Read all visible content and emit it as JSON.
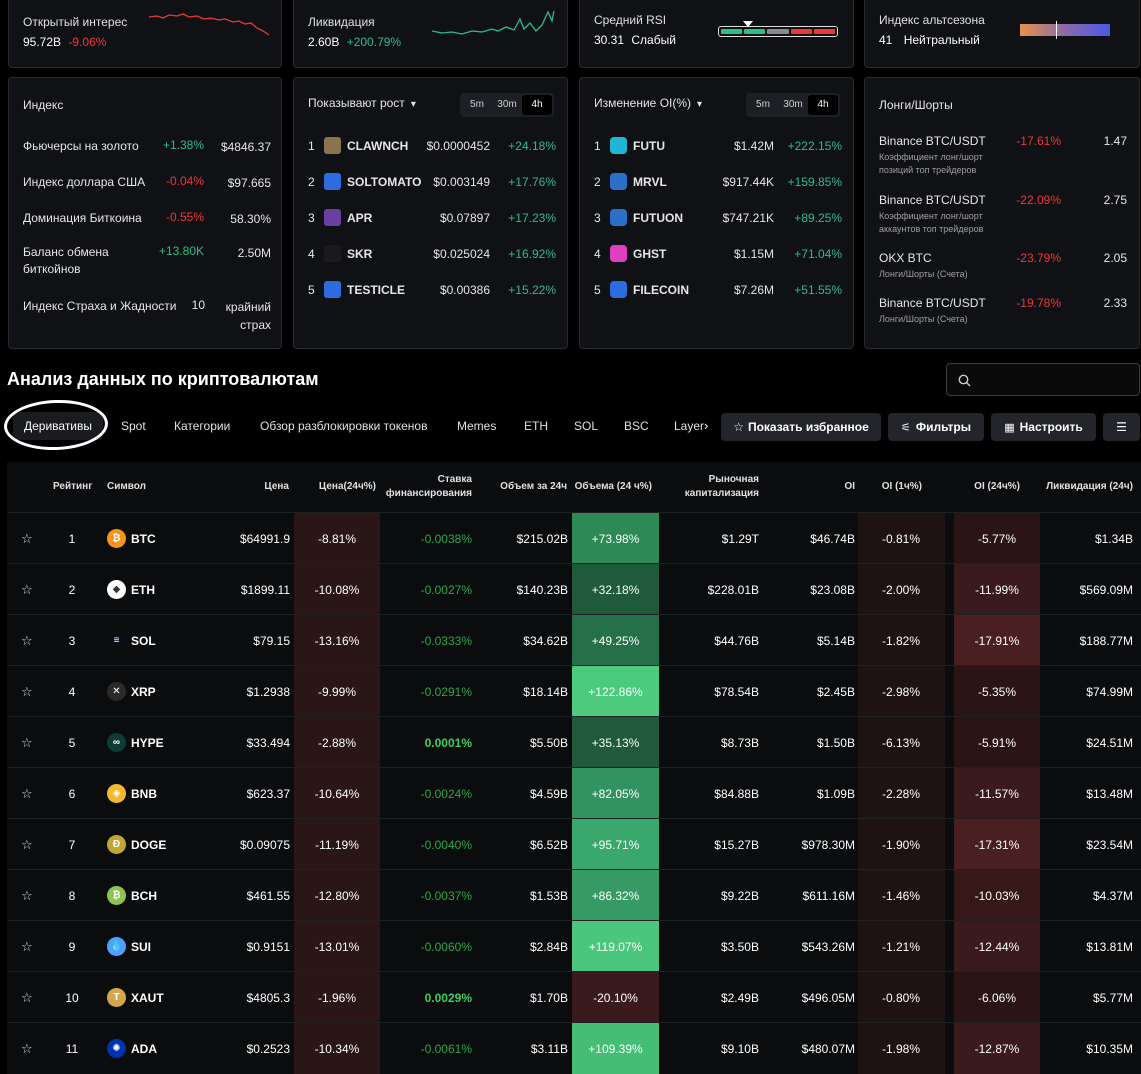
{
  "top": {
    "oi": {
      "title": "Открытый интерес",
      "value": "95.72B",
      "change": "-9.06%"
    },
    "liq": {
      "title": "Ликвидация",
      "value": "2.60B",
      "change": "+200.79%"
    },
    "rsi": {
      "title": "Средний RSI",
      "value": "30.31",
      "label": "Слабый"
    },
    "alt": {
      "title": "Индекс альтсезона",
      "value": "41",
      "label": "Нейтральный"
    }
  },
  "index_panel": {
    "title": "Индекс",
    "rows": [
      {
        "name": "Фьючерсы на золото",
        "change": "+1.38%",
        "value": "$4846.37",
        "dir": "pos"
      },
      {
        "name": "Индекс доллара США",
        "change": "-0.04%",
        "value": "$97.665",
        "dir": "neg"
      },
      {
        "name": "Доминация Биткоина",
        "change": "-0.55%",
        "value": "58.30%",
        "dir": "neg"
      },
      {
        "name": "Баланс обмена биткойнов",
        "change": "+13.80K",
        "value": "2.50M",
        "dir": "pos"
      },
      {
        "name": "Индекс Страха и Жадности",
        "change": "10",
        "value": "крайний страх",
        "dir": "none"
      }
    ]
  },
  "growth_panel": {
    "title": "Показывают рост",
    "tabs": [
      "5m",
      "30m",
      "4h"
    ],
    "rows": [
      {
        "rank": "1",
        "symbol": "CLAWNCH",
        "price": "$0.0000452",
        "change": "+24.18%",
        "color": "#8a7350"
      },
      {
        "rank": "2",
        "symbol": "SOLTOMATO",
        "price": "$0.003149",
        "change": "+17.76%",
        "color": "#2d6cdf"
      },
      {
        "rank": "3",
        "symbol": "APR",
        "price": "$0.07897",
        "change": "+17.23%",
        "color": "#6b3fa0"
      },
      {
        "rank": "4",
        "symbol": "SKR",
        "price": "$0.025024",
        "change": "+16.92%",
        "color": "#1a1a1a"
      },
      {
        "rank": "5",
        "symbol": "TESTICLE",
        "price": "$0.00386",
        "change": "+15.22%",
        "color": "#2d6cdf"
      }
    ]
  },
  "oi_panel": {
    "title": "Изменение OI(%)",
    "tabs": [
      "5m",
      "30m",
      "4h"
    ],
    "rows": [
      {
        "rank": "1",
        "symbol": "FUTU",
        "value": "$1.42M",
        "change": "+222.15%",
        "color": "#1fb6d6"
      },
      {
        "rank": "2",
        "symbol": "MRVL",
        "value": "$917.44K",
        "change": "+159.85%",
        "color": "#2b6fc9"
      },
      {
        "rank": "3",
        "symbol": "FUTUON",
        "value": "$747.21K",
        "change": "+89.25%",
        "color": "#2b6fc9"
      },
      {
        "rank": "4",
        "symbol": "GHST",
        "value": "$1.15M",
        "change": "+71.04%",
        "color": "#e040c0"
      },
      {
        "rank": "5",
        "symbol": "FILECOIN",
        "value": "$7.26M",
        "change": "+51.55%",
        "color": "#2d6cdf"
      }
    ]
  },
  "ls_panel": {
    "title": "Лонги/Шорты",
    "rows": [
      {
        "name": "Binance BTC/USDT",
        "sub": "Коэффициент лонг/шорт позиций топ трейдеров",
        "change": "-17.61%",
        "value": "1.47"
      },
      {
        "name": "Binance BTC/USDT",
        "sub": "Коэффициент лонг/шорт аккаунтов топ трейдеров",
        "change": "-22.09%",
        "value": "2.75"
      },
      {
        "name": "OKX BTC",
        "sub": "Лонги/Шорты (Счета)",
        "change": "-23.79%",
        "value": "2.05"
      },
      {
        "name": "Binance BTC/USDT",
        "sub": "Лонги/Шорты (Счета)",
        "change": "-19.78%",
        "value": "2.33"
      }
    ]
  },
  "section_title": "Анализ данных по криптовалютам",
  "search": {
    "placeholder": ""
  },
  "tabs": {
    "active": "Деривативы",
    "items": [
      "Spot",
      "Категории",
      "Обзор разблокировки токенов",
      "Memes",
      "ETH",
      "SOL",
      "BSC",
      "Layer"
    ]
  },
  "buttons": {
    "favorites": "Показать избранное",
    "filters": "Фильтры",
    "customize": "Настроить"
  },
  "headers": {
    "rank": "Рейтинг",
    "symbol": "Символ",
    "price": "Цена",
    "price_change": "Цена(24ч%)",
    "funding": "Ставка финансирования",
    "vol24": "Объем за 24ч",
    "vol_change": "Объема (24 ч%)",
    "mcap": "Рыночная капитализация",
    "oi": "OI",
    "oi1h": "OI (1ч%)",
    "oi24": "OI (24ч%)",
    "liq": "Ликвидация (24ч)"
  },
  "rows": [
    {
      "rank": "1",
      "symbol": "BTC",
      "price": "$64991.9",
      "pc": "-8.81%",
      "fund": "-0.0038%",
      "fund_pos": false,
      "vol": "$215.02B",
      "vc": "+73.98%",
      "vc_bg": "#2e8a55",
      "mcap": "$1.29T",
      "oi": "$46.74B",
      "oi1": "-0.81%",
      "oi24": "-5.77%",
      "oi24_bg": "#2b1416",
      "liq": "$1.34B",
      "icon_color": "#f7931a",
      "icon_char": "₿"
    },
    {
      "rank": "2",
      "symbol": "ETH",
      "price": "$1899.11",
      "pc": "-10.08%",
      "fund": "-0.0027%",
      "fund_pos": false,
      "vol": "$140.23B",
      "vc": "+32.18%",
      "vc_bg": "#1f5a3a",
      "mcap": "$228.01B",
      "oi": "$23.08B",
      "oi1": "-2.00%",
      "oi24": "-11.99%",
      "oi24_bg": "#3a1a1c",
      "liq": "$569.09M",
      "icon_color": "#ffffff",
      "icon_char": "◆"
    },
    {
      "rank": "3",
      "symbol": "SOL",
      "price": "$79.15",
      "pc": "-13.16%",
      "fund": "-0.0333%",
      "fund_pos": false,
      "vol": "$34.62B",
      "vc": "+49.25%",
      "vc_bg": "#267049",
      "mcap": "$44.76B",
      "oi": "$5.14B",
      "oi1": "-1.82%",
      "oi24": "-17.91%",
      "oi24_bg": "#4a1f22",
      "liq": "$188.77M",
      "icon_color": "#0c0c14",
      "icon_char": "≡"
    },
    {
      "rank": "4",
      "symbol": "XRP",
      "price": "$1.2938",
      "pc": "-9.99%",
      "fund": "-0.0291%",
      "fund_pos": false,
      "vol": "$18.14B",
      "vc": "+122.86%",
      "vc_bg": "#4ccb7f",
      "mcap": "$78.54B",
      "oi": "$2.45B",
      "oi1": "-2.98%",
      "oi24": "-5.35%",
      "oi24_bg": "#2b1416",
      "liq": "$74.99M",
      "icon_color": "#2a2a2a",
      "icon_char": "✕"
    },
    {
      "rank": "5",
      "symbol": "HYPE",
      "price": "$33.494",
      "pc": "-2.88%",
      "fund": "0.0001%",
      "fund_pos": true,
      "vol": "$5.50B",
      "vc": "+35.13%",
      "vc_bg": "#1f5a3a",
      "mcap": "$8.73B",
      "oi": "$1.50B",
      "oi1": "-6.13%",
      "oi24": "-5.91%",
      "oi24_bg": "#2b1416",
      "liq": "$24.51M",
      "icon_color": "#0e3b33",
      "icon_char": "∞"
    },
    {
      "rank": "6",
      "symbol": "BNB",
      "price": "$623.37",
      "pc": "-10.64%",
      "fund": "-0.0024%",
      "fund_pos": false,
      "vol": "$4.59B",
      "vc": "+82.05%",
      "vc_bg": "#329260",
      "mcap": "$84.88B",
      "oi": "$1.09B",
      "oi1": "-2.28%",
      "oi24": "-11.57%",
      "oi24_bg": "#3a1a1c",
      "liq": "$13.48M",
      "icon_color": "#f3ba2f",
      "icon_char": "◈"
    },
    {
      "rank": "7",
      "symbol": "DOGE",
      "price": "$0.09075",
      "pc": "-11.19%",
      "fund": "-0.0040%",
      "fund_pos": false,
      "vol": "$6.52B",
      "vc": "+95.71%",
      "vc_bg": "#3aa86c",
      "mcap": "$15.27B",
      "oi": "$978.30M",
      "oi1": "-1.90%",
      "oi24": "-17.31%",
      "oi24_bg": "#4a1f22",
      "liq": "$23.54M",
      "icon_color": "#c2a633",
      "icon_char": "Ð"
    },
    {
      "rank": "8",
      "symbol": "BCH",
      "price": "$461.55",
      "pc": "-12.80%",
      "fund": "-0.0037%",
      "fund_pos": false,
      "vol": "$1.53B",
      "vc": "+86.32%",
      "vc_bg": "#359a63",
      "mcap": "$9.22B",
      "oi": "$611.16M",
      "oi1": "-1.46%",
      "oi24": "-10.03%",
      "oi24_bg": "#361819",
      "liq": "$4.37M",
      "icon_color": "#8dc351",
      "icon_char": "₿"
    },
    {
      "rank": "9",
      "symbol": "SUI",
      "price": "$0.9151",
      "pc": "-13.01%",
      "fund": "-0.0060%",
      "fund_pos": false,
      "vol": "$2.84B",
      "vc": "+119.07%",
      "vc_bg": "#4ac77c",
      "mcap": "$3.50B",
      "oi": "$543.26M",
      "oi1": "-1.21%",
      "oi24": "-12.44%",
      "oi24_bg": "#3a1a1c",
      "liq": "$13.81M",
      "icon_color": "#4da2ff",
      "icon_char": "💧"
    },
    {
      "rank": "10",
      "symbol": "XAUT",
      "price": "$4805.3",
      "pc": "-1.96%",
      "fund": "0.0029%",
      "fund_pos": true,
      "vol": "$1.70B",
      "vc": "-20.10%",
      "vc_bg": "#3a1a1c",
      "mcap": "$2.49B",
      "oi": "$496.05M",
      "oi1": "-0.80%",
      "oi24": "-6.06%",
      "oi24_bg": "#2b1416",
      "liq": "$5.77M",
      "icon_color": "#d4a84a",
      "icon_char": "T"
    },
    {
      "rank": "11",
      "symbol": "ADA",
      "price": "$0.2523",
      "pc": "-10.34%",
      "fund": "-0.0061%",
      "fund_pos": false,
      "vol": "$3.11B",
      "vc": "+109.39%",
      "vc_bg": "#44bd75",
      "mcap": "$9.10B",
      "oi": "$480.07M",
      "oi1": "-1.98%",
      "oi24": "-12.87%",
      "oi24_bg": "#3a1a1c",
      "liq": "$10.35M",
      "icon_color": "#0033ad",
      "icon_char": "✺"
    }
  ]
}
